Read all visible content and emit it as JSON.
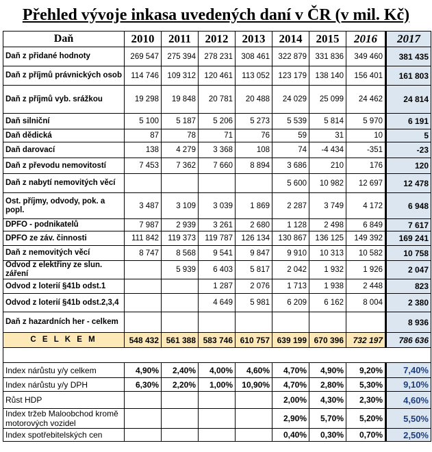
{
  "title": "Přehled vývoje inkasa uvedených daní v ČR (v mil. Kč)",
  "header": {
    "label": "Daň",
    "years": [
      "2010",
      "2011",
      "2012",
      "2013",
      "2014",
      "2015",
      "2016",
      "2017"
    ]
  },
  "rows": [
    {
      "name": "Daň z přidané hodnoty",
      "values": [
        "269 547",
        "275 394",
        "278 231",
        "308 461",
        "322 879",
        "331 836",
        "349 460",
        "381 435"
      ]
    },
    {
      "name": "Daň z příjmů právnických osob",
      "values": [
        "114 746",
        "109 312",
        "120 461",
        "113 052",
        "123 179",
        "138 140",
        "156 401",
        "161 803"
      ]
    },
    {
      "name": "Daň z příjmů vyb. srážkou",
      "values": [
        "19 298",
        "19 848",
        "20 781",
        "20 488",
        "24 029",
        "25 099",
        "24 462",
        "24 814"
      ]
    },
    {
      "name": "Daň silniční",
      "values": [
        "5 100",
        "5 187",
        "5 206",
        "5 273",
        "5 539",
        "5 814",
        "5 970",
        "6 191"
      ]
    },
    {
      "name": "Daň dědická",
      "values": [
        "87",
        "78",
        "71",
        "76",
        "59",
        "31",
        "10",
        "5"
      ]
    },
    {
      "name": "Daň darovací",
      "values": [
        "138",
        "4 279",
        "3 368",
        "108",
        "74",
        "-4 434",
        "-351",
        "-23"
      ]
    },
    {
      "name": "Daň z převodu nemovitostí",
      "values": [
        "7 453",
        "7 362",
        "7 660",
        "8 894",
        "3 686",
        "210",
        "176",
        "120"
      ]
    },
    {
      "name": "Daň z nabytí nemovitých věcí",
      "values": [
        "",
        "",
        "",
        "",
        "5 600",
        "10 982",
        "12 697",
        "12 478"
      ]
    },
    {
      "name": "Ost. příjmy, odvody, pok. a popl.",
      "values": [
        "3 487",
        "3 109",
        "3 039",
        "1 869",
        "2 287",
        "3 749",
        "4 172",
        "6 948"
      ]
    },
    {
      "name": "DPFO - podnikatelů",
      "values": [
        "7 987",
        "2 939",
        "3 261",
        "2 680",
        "1 128",
        "2 498",
        "6 849",
        "7 617"
      ]
    },
    {
      "name": "DPFO ze záv. činnosti",
      "values": [
        "111 842",
        "119 373",
        "119 787",
        "126 134",
        "130 867",
        "136 125",
        "149 392",
        "169 241"
      ]
    },
    {
      "name": "Daň z nemovitých věcí",
      "values": [
        "8 747",
        "8 568",
        "9 541",
        "9 847",
        "9 910",
        "10 313",
        "10 582",
        "10 758"
      ]
    },
    {
      "name": "Odvod z elektřiny ze slun. záření",
      "values": [
        "",
        "5 939",
        "6 403",
        "5 817",
        "2 042",
        "1 932",
        "1 926",
        "2 047"
      ]
    },
    {
      "name": "Odvod z loterií §41b odst.1",
      "values": [
        "",
        "",
        "1 287",
        "2 076",
        "1 713",
        "1 938",
        "2 448",
        "823"
      ]
    },
    {
      "name": "Odvod z loterií §41b odst.2,3,4",
      "values": [
        "",
        "",
        "4 649",
        "5 981",
        "6 209",
        "6 162",
        "8 004",
        "2 380"
      ]
    },
    {
      "name": "Daň z hazardních her - celkem",
      "values": [
        "",
        "",
        "",
        "",
        "",
        "",
        "",
        "8 936"
      ]
    }
  ],
  "total": {
    "label": "C E L K E M",
    "values": [
      "548 432",
      "561 388",
      "583 746",
      "610 757",
      "639 199",
      "670 396",
      "732 197",
      "786 636"
    ]
  },
  "indices": [
    {
      "name": "Index nárůstu y/y celkem",
      "values": [
        "4,90%",
        "2,40%",
        "4,00%",
        "4,60%",
        "4,70%",
        "4,90%",
        "9,20%",
        "7,40%"
      ]
    },
    {
      "name": "Index nárůstu y/y DPH",
      "values": [
        "6,30%",
        "2,20%",
        "1,00%",
        "10,90%",
        "4,70%",
        "2,80%",
        "5,30%",
        "9,10%"
      ]
    },
    {
      "name": "Růst HDP",
      "values": [
        "",
        "",
        "",
        "",
        "2,00%",
        "4,30%",
        "2,30%",
        "4,60%"
      ]
    },
    {
      "name": "Index tržeb Maloobchod kromě motorových vozidel",
      "values": [
        "",
        "",
        "",
        "",
        "2,90%",
        "5,70%",
        "5,20%",
        "5,50%"
      ]
    },
    {
      "name": "Index spotřebitelských cen",
      "values": [
        "",
        "",
        "",
        "",
        "0,40%",
        "0,30%",
        "0,70%",
        "2,50%"
      ]
    }
  ]
}
